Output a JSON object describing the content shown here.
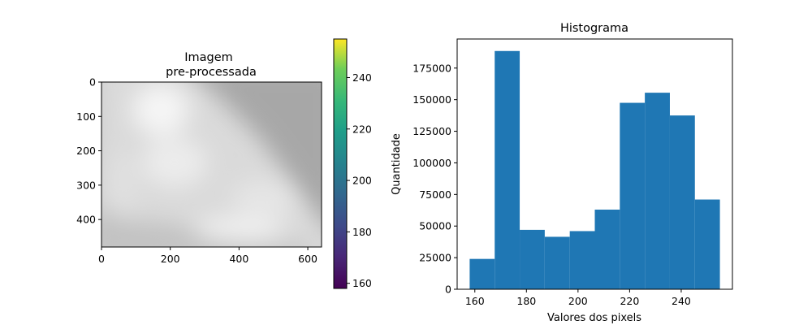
{
  "chart_data": [
    {
      "type": "heatmap",
      "title_lines": [
        "Imagem",
        "pre-processada"
      ],
      "image_width": 640,
      "image_height": 480,
      "xlim": [
        0,
        640
      ],
      "ylim": [
        480,
        0
      ],
      "xticks": [
        0,
        200,
        400,
        600
      ],
      "yticks": [
        0,
        100,
        200,
        300,
        400
      ],
      "colormap": "gray",
      "colorbar": {
        "colormap": "viridis",
        "range": [
          158,
          255
        ],
        "ticks": [
          160,
          180,
          200,
          220,
          240
        ]
      }
    },
    {
      "type": "bar",
      "title": "Histograma",
      "xlabel": "Valores dos pixels",
      "ylabel": "Quantidade",
      "bins": [
        {
          "start": 158,
          "end": 167.7,
          "value": 24000
        },
        {
          "start": 167.7,
          "end": 177.4,
          "value": 188500
        },
        {
          "start": 177.4,
          "end": 187.1,
          "value": 47000
        },
        {
          "start": 187.1,
          "end": 196.8,
          "value": 41500
        },
        {
          "start": 196.8,
          "end": 206.5,
          "value": 46000
        },
        {
          "start": 206.5,
          "end": 216.2,
          "value": 63000
        },
        {
          "start": 216.2,
          "end": 225.9,
          "value": 147500
        },
        {
          "start": 225.9,
          "end": 235.6,
          "value": 155500
        },
        {
          "start": 235.6,
          "end": 245.3,
          "value": 137500
        },
        {
          "start": 245.3,
          "end": 255,
          "value": 71000
        }
      ],
      "xlim": [
        153.15,
        259.85
      ],
      "ylim": [
        0,
        198000
      ],
      "xticks": [
        160,
        180,
        200,
        220,
        240
      ],
      "yticks": [
        0,
        25000,
        50000,
        75000,
        100000,
        125000,
        150000,
        175000
      ],
      "bar_color": "#1f77b4"
    }
  ]
}
